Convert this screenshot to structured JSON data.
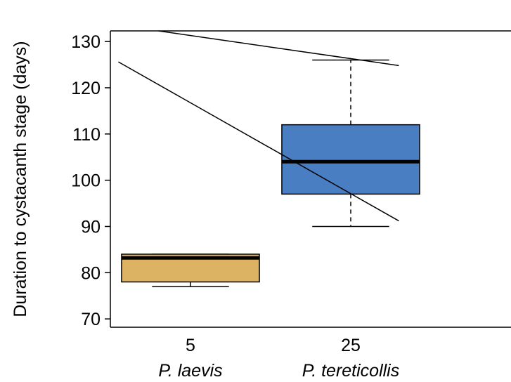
{
  "chart_data": {
    "type": "boxplot",
    "title": "",
    "xlabel": "",
    "ylabel": "Duration to cystacanth stage (days)",
    "ylim": [
      68.2,
      132.3
    ],
    "yticks": [
      70,
      80,
      90,
      100,
      110,
      120,
      130
    ],
    "categories": [
      "5",
      "25"
    ],
    "category_sublabels": [
      "P. laevis",
      "P. tereticollis"
    ],
    "boxes": [
      {
        "category": "5",
        "label": "P. laevis",
        "whisker_low": 77,
        "q1": 78,
        "median": 83.2,
        "q3": 84,
        "whisker_high": 84,
        "color": "#DBB362"
      },
      {
        "category": "25",
        "label": "P. tereticollis",
        "whisker_low": 90,
        "q1": 97,
        "median": 104,
        "q3": 112,
        "whisker_high": 126,
        "color": "#4A7EC3"
      }
    ],
    "overlay_lines": [
      {
        "points": [
          [
            0.55,
            125.6
          ],
          [
            2.3,
            91.2
          ]
        ]
      },
      {
        "points": [
          [
            0.8,
            132.3
          ],
          [
            2.3,
            124.8
          ]
        ]
      }
    ],
    "xlim": [
      0.5,
      3.0
    ],
    "grid": false,
    "legend": "none"
  }
}
